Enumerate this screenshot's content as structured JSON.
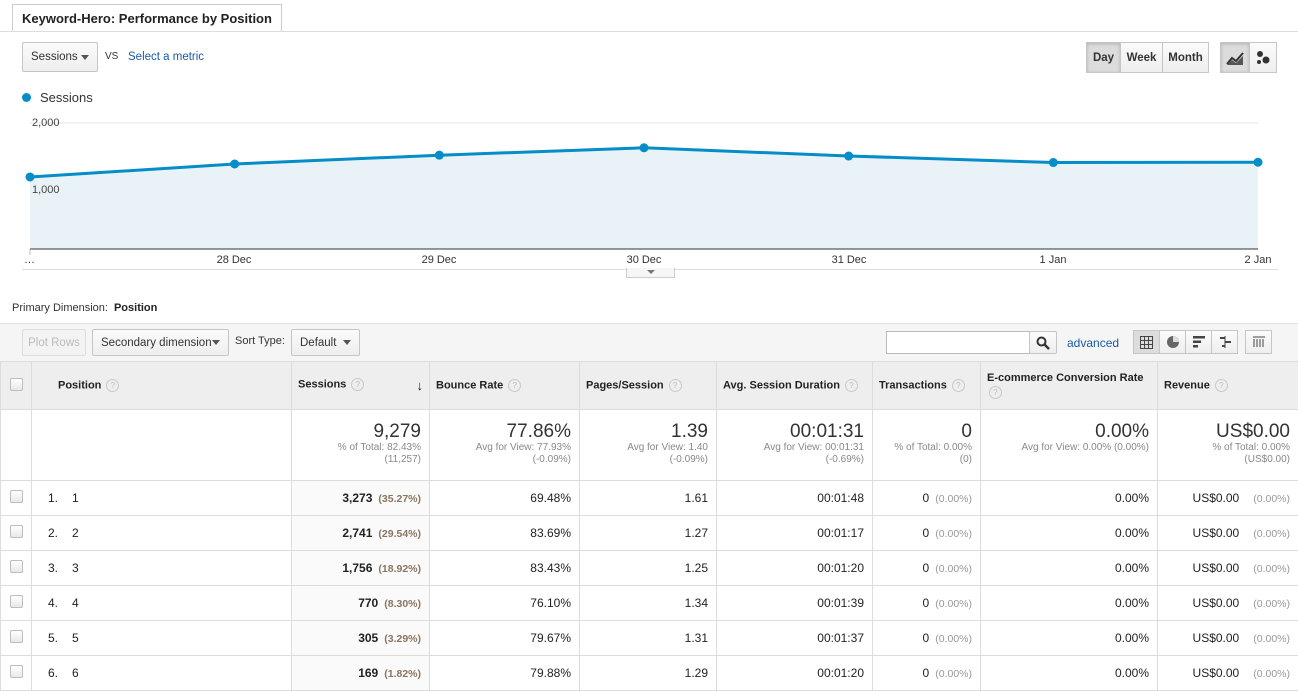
{
  "report": {
    "tab_title": "Keyword-Hero: Performance by Position"
  },
  "controls": {
    "metric_dropdown": "Sessions",
    "vs_label": "VS",
    "select_metric": "Select a metric",
    "periods": [
      "Day",
      "Week",
      "Month"
    ],
    "active_period": "Day",
    "chart_type_icons": [
      "line-chart-icon",
      "motion-chart-icon"
    ]
  },
  "chart_data": {
    "type": "line",
    "series": [
      {
        "name": "Sessions",
        "values": [
          1085,
          1305,
          1455,
          1580,
          1440,
          1330,
          1335
        ]
      }
    ],
    "x": [
      "…",
      "28 Dec",
      "29 Dec",
      "30 Dec",
      "31 Dec",
      "1 Jan",
      "2 Jan"
    ],
    "ytick_labels": [
      "2,000",
      "1,000"
    ],
    "ylim": [
      0,
      2000
    ],
    "color": "#058dc7",
    "fill": "#e9f3f7",
    "grid": true
  },
  "dimension": {
    "label": "Primary Dimension:",
    "value": "Position"
  },
  "table_controls": {
    "plot_rows": "Plot Rows",
    "secondary_dimension": "Secondary dimension",
    "sort_type_label": "Sort Type:",
    "sort_type_value": "Default",
    "search_placeholder": "",
    "advanced": "advanced",
    "view_icons": [
      "table-view-icon",
      "pie-view-icon",
      "performance-view-icon",
      "comparison-view-icon",
      "pivot-view-icon"
    ]
  },
  "columns": {
    "position": "Position",
    "sessions": "Sessions",
    "bounce_rate": "Bounce Rate",
    "pages_session": "Pages/Session",
    "avg_duration": "Avg. Session Duration",
    "transactions": "Transactions",
    "conversion_rate": "E-commerce Conversion Rate",
    "revenue": "Revenue"
  },
  "totals": {
    "sessions": {
      "value": "9,279",
      "sub1": "% of Total: 82.43%",
      "sub2": "(11,257)"
    },
    "bounce_rate": {
      "value": "77.86%",
      "sub1": "Avg for View: 77.93%",
      "sub2": "(-0.09%)"
    },
    "pages_session": {
      "value": "1.39",
      "sub1": "Avg for View: 1.40",
      "sub2": "(-0.09%)"
    },
    "avg_duration": {
      "value": "00:01:31",
      "sub1": "Avg for View: 00:01:31",
      "sub2": "(-0.69%)"
    },
    "transactions": {
      "value": "0",
      "sub1": "% of Total: 0.00%",
      "sub2": "(0)"
    },
    "conversion_rate": {
      "value": "0.00%",
      "sub1": "Avg for View: 0.00% (0.00%)",
      "sub2": ""
    },
    "revenue": {
      "value": "US$0.00",
      "sub1": "% of Total: 0.00%",
      "sub2": "(US$0.00)"
    }
  },
  "rows": [
    {
      "index": "1.",
      "position": "1",
      "sessions": "3,273",
      "sessions_pct": "(35.27%)",
      "bounce": "69.48%",
      "pages": "1.61",
      "duration": "00:01:48",
      "transactions": "0",
      "transactions_pct": "(0.00%)",
      "conversion": "0.00%",
      "revenue": "US$0.00",
      "revenue_pct": "(0.00%)"
    },
    {
      "index": "2.",
      "position": "2",
      "sessions": "2,741",
      "sessions_pct": "(29.54%)",
      "bounce": "83.69%",
      "pages": "1.27",
      "duration": "00:01:17",
      "transactions": "0",
      "transactions_pct": "(0.00%)",
      "conversion": "0.00%",
      "revenue": "US$0.00",
      "revenue_pct": "(0.00%)"
    },
    {
      "index": "3.",
      "position": "3",
      "sessions": "1,756",
      "sessions_pct": "(18.92%)",
      "bounce": "83.43%",
      "pages": "1.25",
      "duration": "00:01:20",
      "transactions": "0",
      "transactions_pct": "(0.00%)",
      "conversion": "0.00%",
      "revenue": "US$0.00",
      "revenue_pct": "(0.00%)"
    },
    {
      "index": "4.",
      "position": "4",
      "sessions": "770",
      "sessions_pct": "(8.30%)",
      "bounce": "76.10%",
      "pages": "1.34",
      "duration": "00:01:39",
      "transactions": "0",
      "transactions_pct": "(0.00%)",
      "conversion": "0.00%",
      "revenue": "US$0.00",
      "revenue_pct": "(0.00%)"
    },
    {
      "index": "5.",
      "position": "5",
      "sessions": "305",
      "sessions_pct": "(3.29%)",
      "bounce": "79.67%",
      "pages": "1.31",
      "duration": "00:01:37",
      "transactions": "0",
      "transactions_pct": "(0.00%)",
      "conversion": "0.00%",
      "revenue": "US$0.00",
      "revenue_pct": "(0.00%)"
    },
    {
      "index": "6.",
      "position": "6",
      "sessions": "169",
      "sessions_pct": "(1.82%)",
      "bounce": "79.88%",
      "pages": "1.29",
      "duration": "00:01:20",
      "transactions": "0",
      "transactions_pct": "(0.00%)",
      "conversion": "0.00%",
      "revenue": "US$0.00",
      "revenue_pct": "(0.00%)"
    }
  ]
}
